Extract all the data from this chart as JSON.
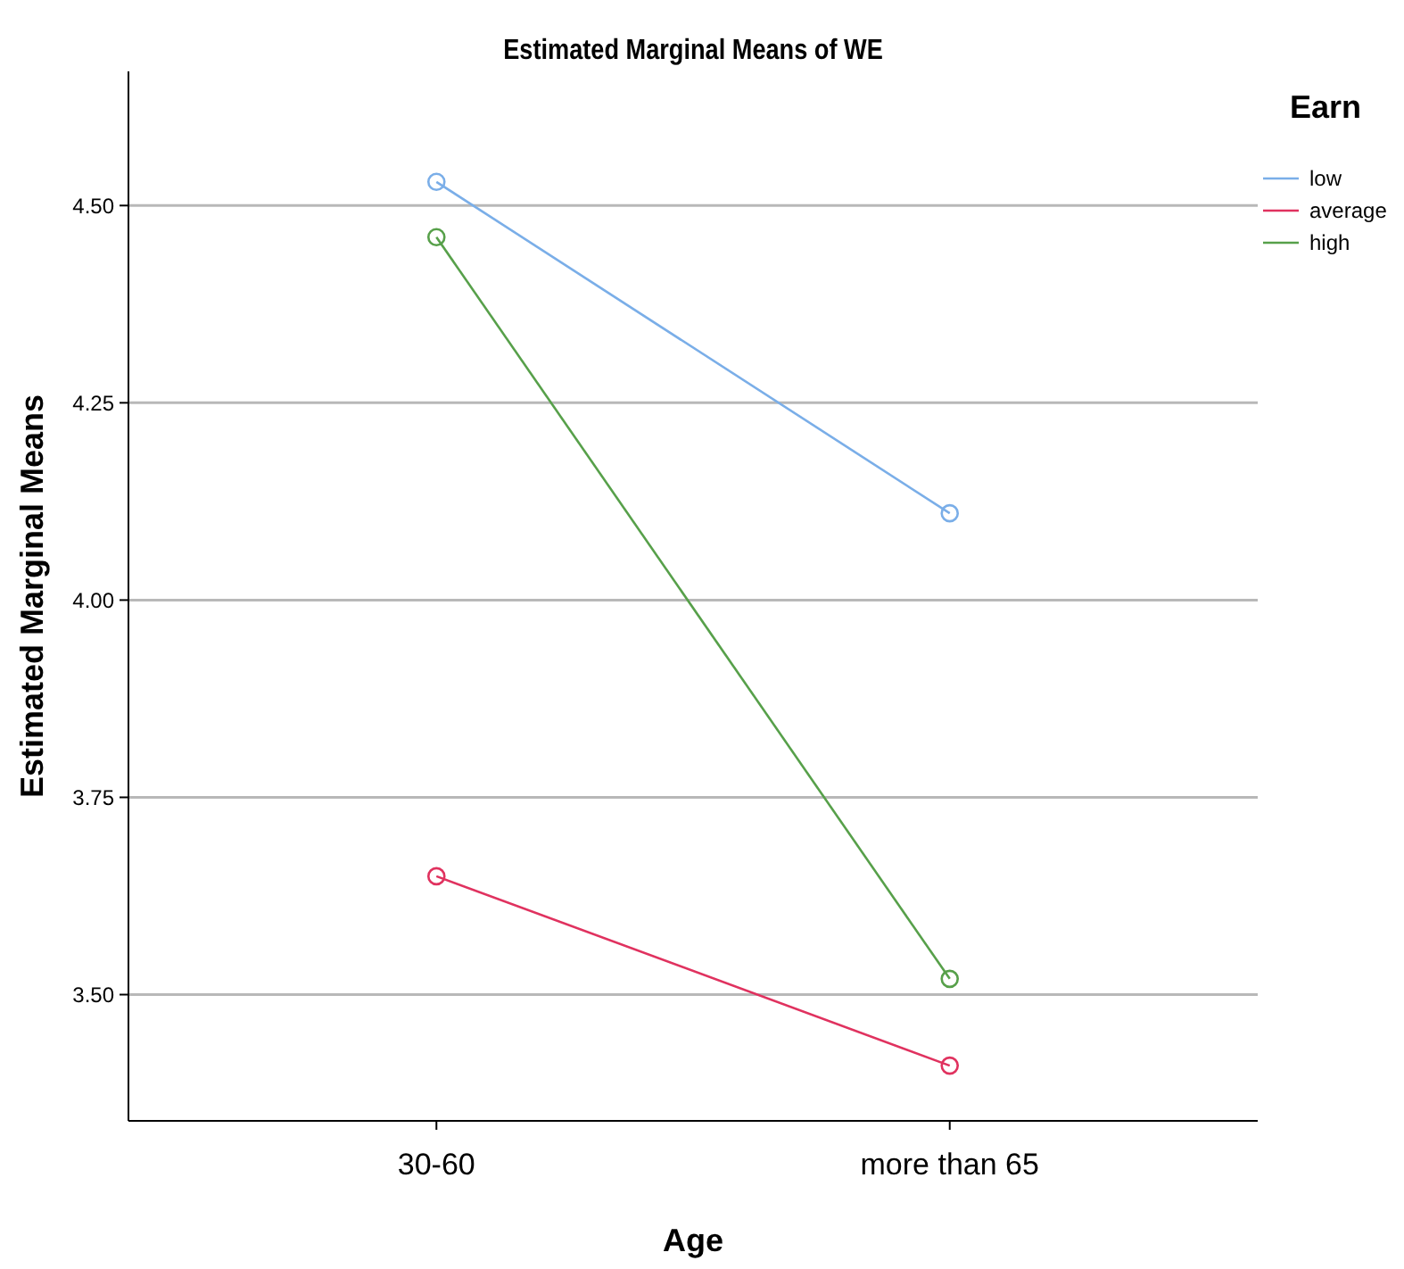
{
  "chart_data": {
    "type": "line",
    "title": "Estimated Marginal Means of WE",
    "xlabel": "Age",
    "ylabel": "Estimated Marginal Means",
    "legend_title": "Earn",
    "categories": [
      "30-60",
      "more than 65"
    ],
    "series": [
      {
        "name": "low",
        "color": "#7aaee8",
        "values": [
          4.53,
          4.11
        ]
      },
      {
        "name": "average",
        "color": "#e0325f",
        "values": [
          3.65,
          3.41
        ]
      },
      {
        "name": "high",
        "color": "#57a04a",
        "values": [
          4.46,
          3.52
        ]
      }
    ],
    "ylim": [
      3.34,
      4.67
    ],
    "yticks": [
      {
        "value": 3.5,
        "label": "3.50"
      },
      {
        "value": 3.75,
        "label": "3.75"
      },
      {
        "value": 4,
        "label": "4.00"
      },
      {
        "value": 4.25,
        "label": "4.25"
      },
      {
        "value": 4.5,
        "label": "4.50"
      }
    ],
    "grid": "y",
    "legend": "top right",
    "marker": "circle",
    "line_style": "solid"
  }
}
